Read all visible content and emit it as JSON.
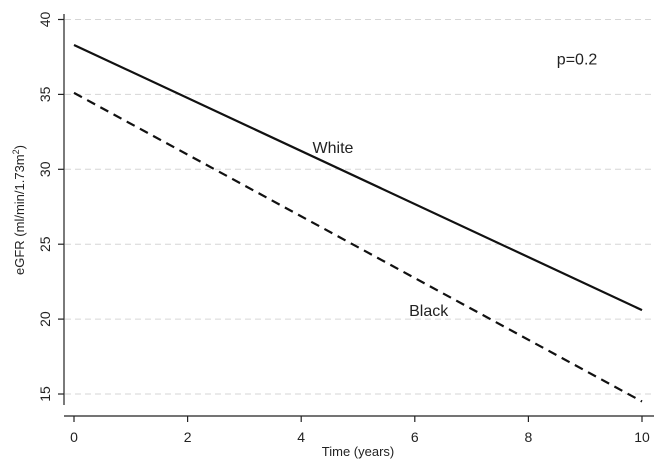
{
  "chart_data": {
    "type": "line",
    "title": "",
    "xlabel": "Time (years)",
    "ylabel": "eGFR (ml/min/1.73m",
    "ylabel_superscript": "2",
    "ylabel_close": ")",
    "xlim": [
      0,
      10
    ],
    "ylim": [
      14.4,
      40.3
    ],
    "x_ticks": [
      0,
      2,
      4,
      6,
      8,
      10
    ],
    "y_ticks": [
      15,
      20,
      25,
      30,
      35,
      40
    ],
    "x_tick_labels": [
      "0",
      "2",
      "4",
      "6",
      "8",
      "10"
    ],
    "y_tick_labels": [
      "15",
      "20",
      "25",
      "30",
      "35",
      "40"
    ],
    "grid": "horizontal dashed",
    "legend": "none",
    "series": [
      {
        "name": "White",
        "x": [
          0,
          10
        ],
        "y": [
          38.3,
          20.6
        ],
        "line_style": "solid",
        "color": "#111111"
      },
      {
        "name": "Black",
        "x": [
          0,
          10
        ],
        "y": [
          35.1,
          14.5
        ],
        "line_style": "dashed",
        "color": "#111111"
      }
    ],
    "annotations": [
      {
        "text": "White",
        "x": 4.2,
        "y": 31.1
      },
      {
        "text": "Black",
        "x": 5.9,
        "y": 20.2
      },
      {
        "text": "p=0.2",
        "x": 8.5,
        "y": 37.0
      }
    ]
  }
}
